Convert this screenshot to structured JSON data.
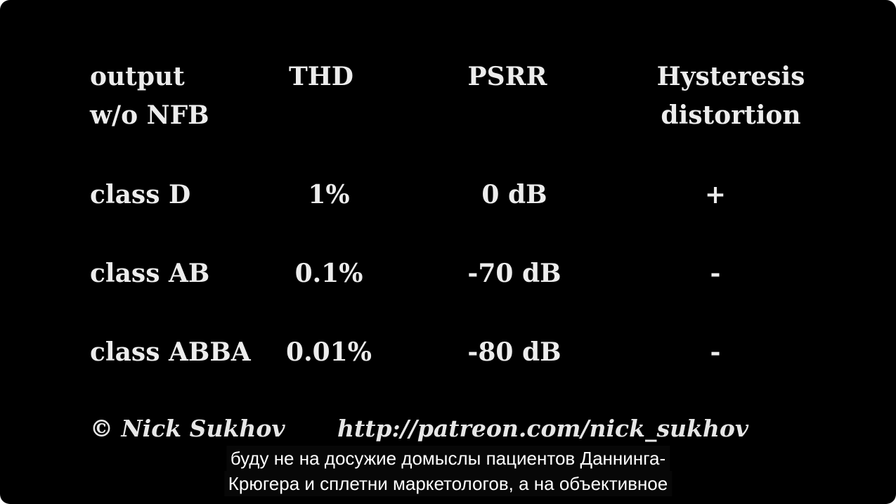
{
  "table": {
    "header": [
      [
        "output",
        "w/o NFB"
      ],
      [
        "THD"
      ],
      [
        "PSRR"
      ],
      [
        "Hysteresis",
        "distortion"
      ]
    ],
    "rows": [
      [
        "class D",
        "1%",
        "0 dB",
        "+"
      ],
      [
        "class AB",
        "0.1%",
        "-70 dB",
        "-"
      ],
      [
        "class ABBA",
        "0.01%",
        "-80 dB",
        "-"
      ]
    ]
  },
  "footer": {
    "credit": "© Nick Sukhov",
    "url": "http://patreon.com/nick_sukhov"
  },
  "subtitles": [
    "буду не на досужие домыслы пациентов Даннинга-",
    "Крюгера и сплетни маркетологов, а на объективное"
  ]
}
